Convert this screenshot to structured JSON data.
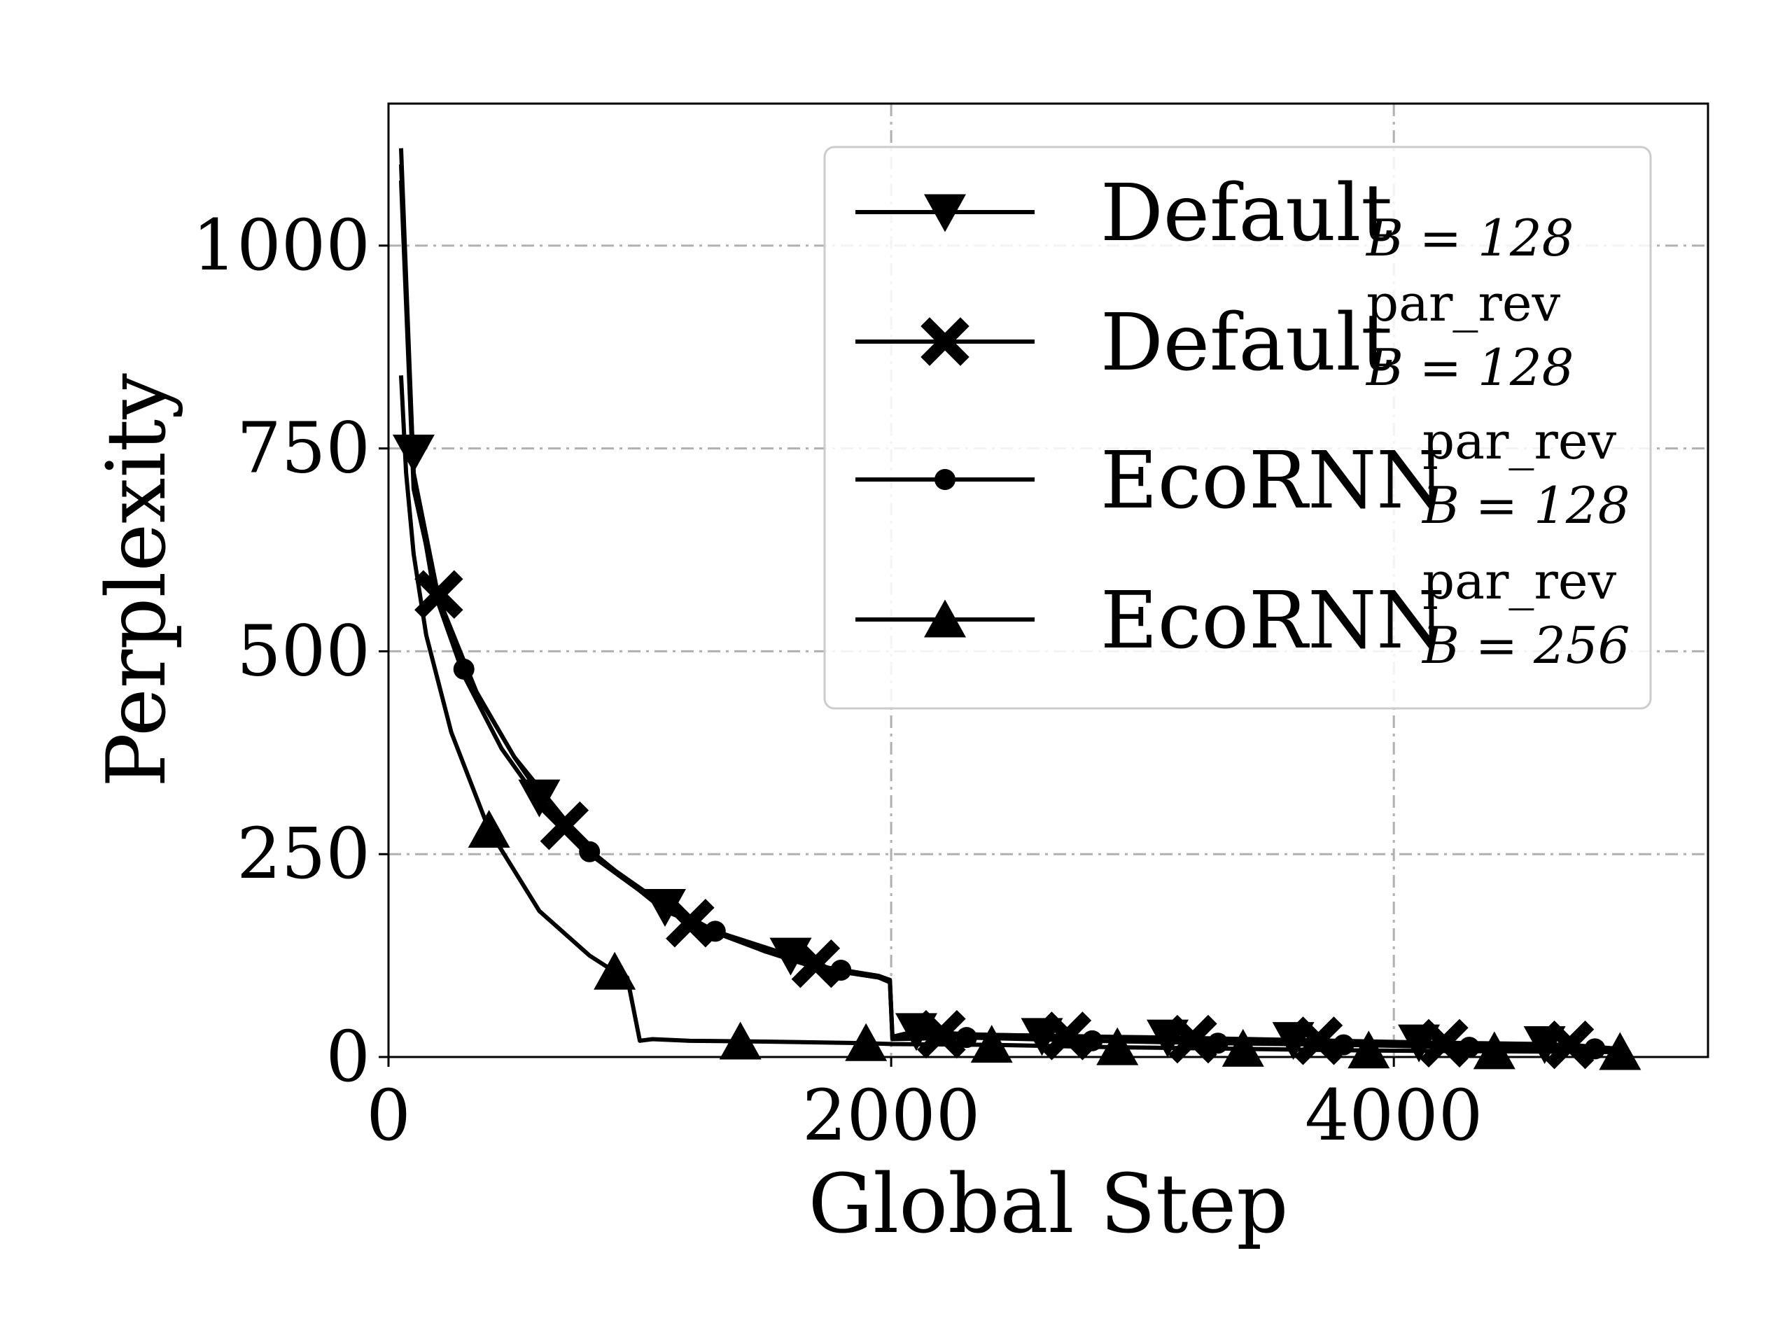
{
  "chart_data": {
    "type": "line",
    "xlabel": "Global Step",
    "ylabel": "Perplexity",
    "xlim": [
      0,
      5250
    ],
    "ylim": [
      0,
      1175
    ],
    "xticks": [
      0,
      2000,
      4000
    ],
    "yticks": [
      0,
      250,
      500,
      750,
      1000
    ],
    "grid": true,
    "legend_position": "top-right",
    "series": [
      {
        "name": "Default",
        "subscript": "B = 128",
        "superscript": "",
        "marker": "triangle-down",
        "x": [
          50,
          100,
          180,
          300,
          450,
          600,
          800,
          1000,
          1100,
          1300,
          1600,
          1750,
          1950,
          1995,
          2005,
          2100,
          2300,
          2600,
          3100,
          3600,
          4100,
          4600,
          4900
        ],
        "y": [
          1120,
          720,
          575,
          470,
          380,
          315,
          250,
          205,
          180,
          155,
          125,
          110,
          100,
          95,
          25,
          32,
          28,
          26,
          24,
          21,
          18,
          16,
          10
        ],
        "marker_x": [
          100,
          600,
          1100,
          1600,
          2100,
          2600,
          3100,
          3600,
          4100,
          4600
        ],
        "marker_y": [
          745,
          320,
          185,
          125,
          32,
          26,
          24,
          21,
          18,
          16
        ]
      },
      {
        "name": "Default",
        "subscript": "B = 128",
        "superscript": "par_rev",
        "marker": "x",
        "x": [
          50,
          100,
          200,
          350,
          500,
          700,
          900,
          1200,
          1500,
          1700,
          1950,
          1995,
          2005,
          2200,
          2700,
          3200,
          3700,
          4200,
          4700,
          4900
        ],
        "y": [
          1100,
          720,
          565,
          450,
          370,
          280,
          230,
          165,
          130,
          110,
          98,
          93,
          25,
          28,
          26,
          22,
          20,
          17,
          15,
          10
        ],
        "marker_x": [
          200,
          700,
          1200,
          1700,
          2200,
          2700,
          3200,
          3700,
          4200,
          4700
        ],
        "marker_y": [
          570,
          285,
          165,
          115,
          28,
          26,
          22,
          20,
          17,
          15
        ]
      },
      {
        "name": "EcoRNN",
        "subscript": "B = 128",
        "superscript": "par_rev",
        "marker": "dot",
        "x": [
          50,
          100,
          200,
          300,
          500,
          800,
          1000,
          1300,
          1500,
          1800,
          1950,
          1995,
          2005,
          2300,
          2800,
          3300,
          3800,
          4300,
          4800,
          4900
        ],
        "y": [
          1080,
          700,
          560,
          475,
          370,
          255,
          205,
          155,
          130,
          105,
          98,
          92,
          22,
          24,
          20,
          17,
          15,
          12,
          10,
          8
        ],
        "marker_x": [
          300,
          800,
          1300,
          1800,
          2300,
          2800,
          3300,
          3800,
          4300,
          4800
        ],
        "marker_y": [
          478,
          253,
          155,
          107,
          24,
          20,
          17,
          15,
          12,
          10
        ]
      },
      {
        "name": "EcoRNN",
        "subscript": "B = 256",
        "superscript": "par_rev",
        "marker": "triangle-up",
        "x": [
          50,
          70,
          100,
          150,
          250,
          400,
          600,
          800,
          900,
          950,
          1000,
          1050,
          1200,
          1500,
          1900,
          2000,
          2400,
          2900,
          3400,
          3900,
          4400,
          4900
        ],
        "y": [
          840,
          720,
          620,
          520,
          400,
          280,
          180,
          125,
          105,
          98,
          20,
          22,
          20,
          19,
          17,
          16,
          15,
          12,
          10,
          8,
          7,
          6
        ],
        "marker_x": [
          400,
          900,
          1400,
          1900,
          2400,
          2900,
          3400,
          3900,
          4400,
          4900
        ],
        "marker_y": [
          280,
          105,
          19,
          17,
          15,
          12,
          10,
          8,
          7,
          6
        ]
      }
    ]
  }
}
